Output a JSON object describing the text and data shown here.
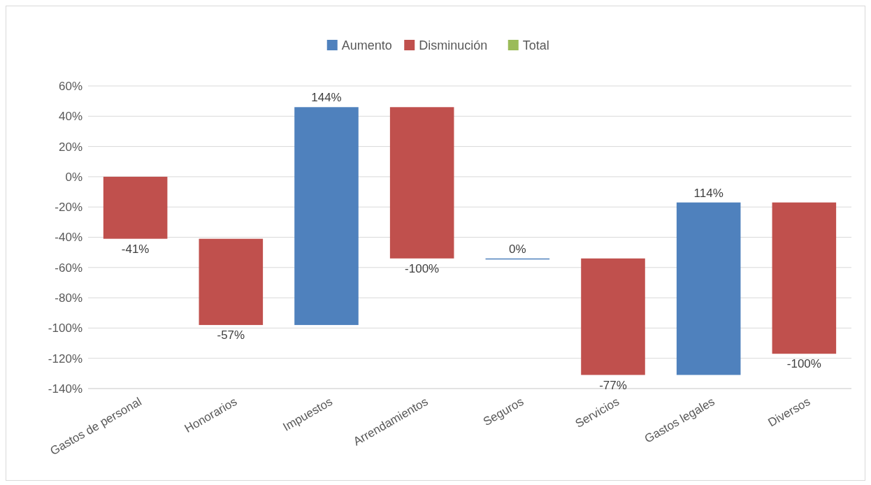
{
  "chart_data": {
    "type": "bar",
    "categories": [
      "Gastos de personal",
      "Honorarios",
      "Impuestos",
      "Arrendamientos",
      "Seguros",
      "Servicios",
      "Gastos legales",
      "Diversos"
    ],
    "series": [
      {
        "name": "Aumento",
        "color": "#4f81bd",
        "base": [
          null,
          null,
          -98,
          null,
          -54,
          null,
          -131,
          null
        ],
        "values": [
          null,
          null,
          144,
          null,
          0,
          null,
          114,
          null
        ],
        "value_labels": [
          null,
          null,
          "144%",
          null,
          "0%",
          null,
          "114%",
          null
        ]
      },
      {
        "name": "Disminución",
        "color": "#c0504d",
        "base": [
          0,
          -41,
          null,
          46,
          null,
          -54,
          null,
          -17
        ],
        "values": [
          -41,
          -57,
          null,
          -100,
          null,
          -77,
          null,
          -100
        ],
        "value_labels": [
          "-41%",
          "-57%",
          null,
          "-100%",
          null,
          "-77%",
          null,
          "-100%"
        ]
      },
      {
        "name": "Total",
        "color": "#9bbb59",
        "values": [
          null,
          null,
          null,
          null,
          null,
          null,
          null,
          null
        ]
      }
    ],
    "ylim": [
      -140,
      60
    ],
    "yticks": [
      {
        "value": 60,
        "label": "60%"
      },
      {
        "value": 40,
        "label": "40%"
      },
      {
        "value": 20,
        "label": "20%"
      },
      {
        "value": 0,
        "label": "0%"
      },
      {
        "value": -20,
        "label": "-20%"
      },
      {
        "value": -40,
        "label": "-40%"
      },
      {
        "value": -60,
        "label": "-60%"
      },
      {
        "value": -80,
        "label": "-80%"
      },
      {
        "value": -100,
        "label": "-100%"
      },
      {
        "value": -120,
        "label": "-120%"
      },
      {
        "value": -140,
        "label": "-140%"
      }
    ],
    "grid": "y",
    "legend": "top"
  }
}
